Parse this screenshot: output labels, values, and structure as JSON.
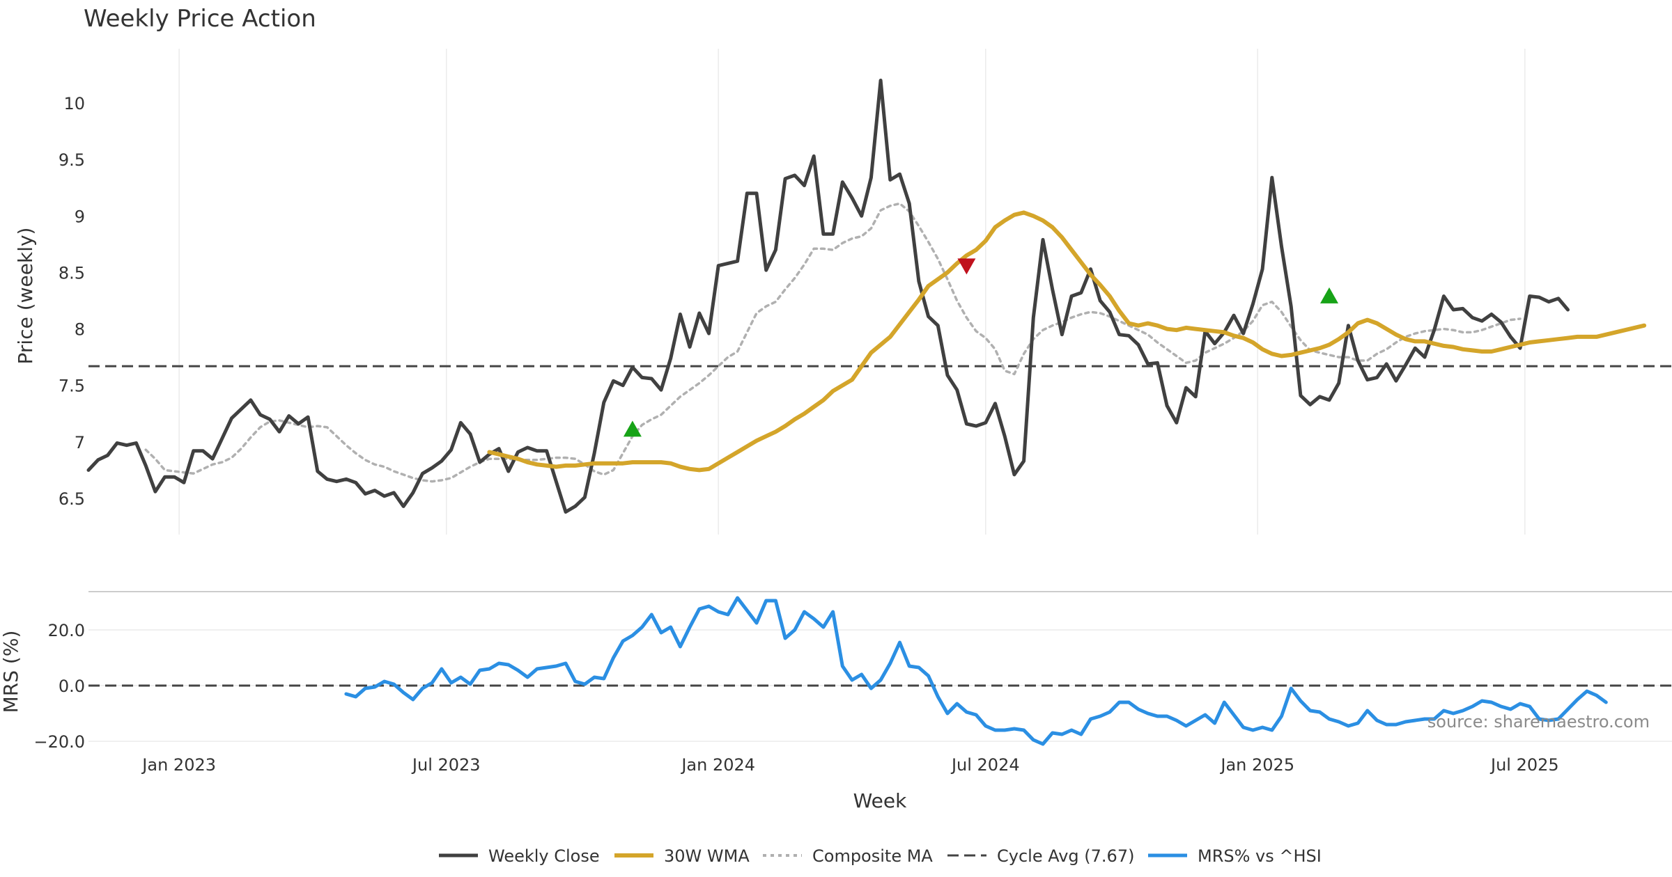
{
  "title": "Weekly Price Action",
  "source": "source: sharemaestro.com",
  "colors": {
    "close": "#404040",
    "wma": "#d4a52a",
    "composite": "#b0b0b0",
    "cycle": "#444444",
    "mrs": "#2b8fe3",
    "buy": "#17a317",
    "sell": "#c0111d",
    "grid": "#ebebeb"
  },
  "chart_data": [
    {
      "type": "line",
      "panel": "price",
      "ylabel": "Price (weekly)",
      "ylim": [
        6.2,
        10.45
      ],
      "yticks": [
        6.5,
        7,
        7.5,
        8,
        8.5,
        9,
        9.5,
        10
      ],
      "ytick_labels": [
        "6.5",
        "7",
        "7.5",
        "8",
        "8.5",
        "9",
        "9.5",
        "10"
      ],
      "cycle_avg": 7.67,
      "series": [
        {
          "name": "Weekly Close",
          "x_start": 0,
          "values": [
            6.75,
            6.84,
            6.88,
            6.99,
            6.97,
            6.99,
            6.79,
            6.56,
            6.69,
            6.69,
            6.64,
            6.92,
            6.92,
            6.85,
            7.03,
            7.21,
            7.29,
            7.37,
            7.24,
            7.2,
            7.09,
            7.23,
            7.16,
            7.22,
            6.74,
            6.67,
            6.65,
            6.67,
            6.64,
            6.54,
            6.57,
            6.52,
            6.55,
            6.43,
            6.55,
            6.72,
            6.77,
            6.83,
            6.93,
            7.17,
            7.07,
            6.82,
            6.89,
            6.94,
            6.74,
            6.91,
            6.95,
            6.92,
            6.92,
            6.65,
            6.38,
            6.43,
            6.51,
            6.9,
            7.35,
            7.54,
            7.5,
            7.66,
            7.57,
            7.56,
            7.46,
            7.74,
            8.13,
            7.84,
            8.14,
            7.96,
            8.56,
            8.58,
            8.6,
            9.2,
            9.2,
            8.52,
            8.7,
            9.33,
            9.36,
            9.27,
            9.53,
            8.84,
            8.84,
            9.3,
            9.16,
            9.0,
            9.34,
            10.2,
            9.32,
            9.37,
            9.11,
            8.42,
            8.11,
            8.03,
            7.59,
            7.46,
            7.16,
            7.14,
            7.17,
            7.34,
            7.05,
            6.71,
            6.83,
            8.1,
            8.79,
            8.35,
            7.95,
            8.29,
            8.32,
            8.53,
            8.25,
            8.15,
            7.95,
            7.94,
            7.86,
            7.69,
            7.7,
            7.32,
            7.17,
            7.48,
            7.4,
            7.98,
            7.87,
            7.97,
            8.12,
            7.96,
            8.22,
            8.53,
            9.34,
            8.73,
            8.2,
            7.41,
            7.33,
            7.4,
            7.37,
            7.52,
            8.03,
            7.72,
            7.55,
            7.57,
            7.69,
            7.54,
            7.68,
            7.83,
            7.75,
            7.99,
            8.29,
            8.17,
            8.18,
            8.1,
            8.07,
            8.13,
            8.06,
            7.93,
            7.83,
            8.29,
            8.28,
            8.24,
            8.27,
            8.17
          ]
        },
        {
          "name": "30W WMA",
          "x_start": 42,
          "values": [
            6.91,
            6.89,
            6.87,
            6.85,
            6.82,
            6.8,
            6.79,
            6.78,
            6.79,
            6.79,
            6.8,
            6.81,
            6.81,
            6.81,
            6.81,
            6.82,
            6.82,
            6.82,
            6.82,
            6.81,
            6.78,
            6.76,
            6.75,
            6.76,
            6.81,
            6.86,
            6.91,
            6.96,
            7.01,
            7.05,
            7.09,
            7.14,
            7.2,
            7.25,
            7.31,
            7.37,
            7.45,
            7.5,
            7.55,
            7.67,
            7.79,
            7.86,
            7.93,
            8.04,
            8.15,
            8.26,
            8.38,
            8.44,
            8.5,
            8.58,
            8.65,
            8.7,
            8.78,
            8.9,
            8.96,
            9.01,
            9.03,
            9.0,
            8.96,
            8.9,
            8.81,
            8.7,
            8.59,
            8.48,
            8.39,
            8.29,
            8.16,
            8.05,
            8.03,
            8.05,
            8.03,
            8.0,
            7.99,
            8.01,
            8.0,
            7.99,
            7.98,
            7.97,
            7.94,
            7.92,
            7.88,
            7.82,
            7.78,
            7.76,
            7.77,
            7.79,
            7.81,
            7.83,
            7.86,
            7.91,
            7.97,
            8.05,
            8.08,
            8.05,
            8.0,
            7.95,
            7.91,
            7.89,
            7.89,
            7.87,
            7.85,
            7.84,
            7.82,
            7.81,
            7.8,
            7.8,
            7.82,
            7.84,
            7.86,
            7.88,
            7.89,
            7.9,
            7.91,
            7.92,
            7.93,
            7.93,
            7.93,
            7.95,
            7.97,
            7.99,
            8.01,
            8.03
          ]
        },
        {
          "name": "Composite MA",
          "x_start": 6,
          "values": [
            6.93,
            6.85,
            6.75,
            6.74,
            6.73,
            6.72,
            6.76,
            6.8,
            6.82,
            6.86,
            6.94,
            7.04,
            7.13,
            7.18,
            7.19,
            7.17,
            7.15,
            7.13,
            7.14,
            7.13,
            7.05,
            6.97,
            6.9,
            6.84,
            6.8,
            6.78,
            6.74,
            6.71,
            6.68,
            6.66,
            6.65,
            6.66,
            6.68,
            6.73,
            6.78,
            6.82,
            6.85,
            6.85,
            6.85,
            6.84,
            6.84,
            6.84,
            6.85,
            6.86,
            6.86,
            6.85,
            6.8,
            6.74,
            6.71,
            6.75,
            6.9,
            7.05,
            7.15,
            7.2,
            7.24,
            7.32,
            7.4,
            7.46,
            7.52,
            7.59,
            7.67,
            7.75,
            7.8,
            7.97,
            8.14,
            8.2,
            8.24,
            8.35,
            8.45,
            8.57,
            8.71,
            8.71,
            8.7,
            8.76,
            8.8,
            8.82,
            8.89,
            9.05,
            9.09,
            9.11,
            9.04,
            8.91,
            8.77,
            8.62,
            8.44,
            8.25,
            8.1,
            7.98,
            7.92,
            7.82,
            7.63,
            7.6,
            7.78,
            7.91,
            7.99,
            8.03,
            8.06,
            8.1,
            8.13,
            8.15,
            8.14,
            8.11,
            8.07,
            8.03,
            7.99,
            7.95,
            7.88,
            7.82,
            7.76,
            7.7,
            7.72,
            7.79,
            7.83,
            7.87,
            7.92,
            7.98,
            8.07,
            8.21,
            8.24,
            8.15,
            8.02,
            7.9,
            7.81,
            7.79,
            7.77,
            7.75,
            7.75,
            7.72,
            7.72,
            7.78,
            7.82,
            7.88,
            7.93,
            7.96,
            7.98,
            7.99,
            8.0,
            7.99,
            7.97,
            7.97,
            7.99,
            8.02,
            8.05,
            8.08,
            8.09
          ]
        }
      ],
      "markers": [
        {
          "type": "buy",
          "x": 57,
          "y": 7.12
        },
        {
          "type": "sell",
          "x": 92,
          "y": 8.55
        },
        {
          "type": "buy",
          "x": 130,
          "y": 8.3
        }
      ]
    },
    {
      "type": "line",
      "panel": "mrs",
      "ylabel": "MRS (%)",
      "ylim": [
        -22,
        33
      ],
      "yticks": [
        20,
        0,
        -20
      ],
      "ytick_labels": [
        "20.0",
        "0.0",
        "−20.0"
      ],
      "zero_line": 0,
      "series": [
        {
          "name": "MRS% vs ^HSI",
          "x_start": 27,
          "values": [
            -3,
            -4,
            -1,
            -0.5,
            1.5,
            0.5,
            -2.5,
            -5,
            -1,
            1,
            6,
            1,
            3,
            0.5,
            5.5,
            6,
            8,
            7.5,
            5.5,
            3,
            6,
            6.5,
            7,
            8,
            1.5,
            0.5,
            3,
            2.5,
            10,
            16,
            18,
            21,
            25.5,
            19,
            21,
            14,
            21,
            27.5,
            28.5,
            26.5,
            25.5,
            31.5,
            27,
            22.5,
            30.5,
            30.5,
            17,
            20,
            26.5,
            24,
            21,
            26.5,
            7,
            2,
            4,
            -1,
            2,
            8,
            15.5,
            7,
            6.5,
            3.5,
            -4,
            -10,
            -6.5,
            -9.5,
            -10.5,
            -14.5,
            -16,
            -16,
            -15.5,
            -16,
            -19.5,
            -21,
            -17,
            -17.5,
            -16,
            -17.5,
            -12,
            -11,
            -9.5,
            -6,
            -6,
            -8.5,
            -10,
            -11,
            -11,
            -12.5,
            -14.5,
            -12.5,
            -10.5,
            -13.5,
            -6,
            -10.5,
            -15,
            -16,
            -15,
            -16,
            -11,
            -1,
            -5.5,
            -9,
            -9.5,
            -12,
            -13,
            -14.5,
            -13.5,
            -9,
            -12.5,
            -14,
            -14,
            -13,
            -12.5,
            -12,
            -12,
            -9,
            -10,
            -9,
            -7.5,
            -5.5,
            -6,
            -7.5,
            -8.5,
            -6.5,
            -7.5,
            -12,
            -12.5,
            -12,
            -8.5,
            -5,
            -2,
            -3.5,
            -6
          ]
        }
      ]
    }
  ],
  "x_axis": {
    "label": "Week",
    "ticks": [
      {
        "label": "Jan 2023",
        "x": 9.5
      },
      {
        "label": "Jul 2023",
        "x": 37.5
      },
      {
        "label": "Jan 2024",
        "x": 66
      },
      {
        "label": "Jul 2024",
        "x": 94
      },
      {
        "label": "Jan 2025",
        "x": 122.5
      },
      {
        "label": "Jul 2025",
        "x": 150.5
      }
    ]
  },
  "legend": [
    {
      "label": "Weekly Close",
      "style": "close"
    },
    {
      "label": "30W WMA",
      "style": "wma"
    },
    {
      "label": "Composite MA",
      "style": "composite"
    },
    {
      "label": "Cycle Avg (7.67)",
      "style": "cycle"
    },
    {
      "label": "MRS% vs ^HSI",
      "style": "mrs"
    }
  ]
}
